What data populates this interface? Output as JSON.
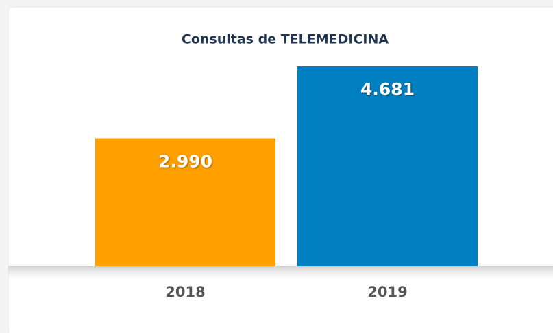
{
  "chart_data": {
    "type": "bar",
    "title": "Consultas de TELEMEDICINA",
    "categories": [
      "2018",
      "2019"
    ],
    "values": [
      2990,
      4681
    ],
    "value_labels": [
      "2.990",
      "4.681"
    ],
    "colors": [
      "#ff9f00",
      "#0080c0"
    ]
  }
}
